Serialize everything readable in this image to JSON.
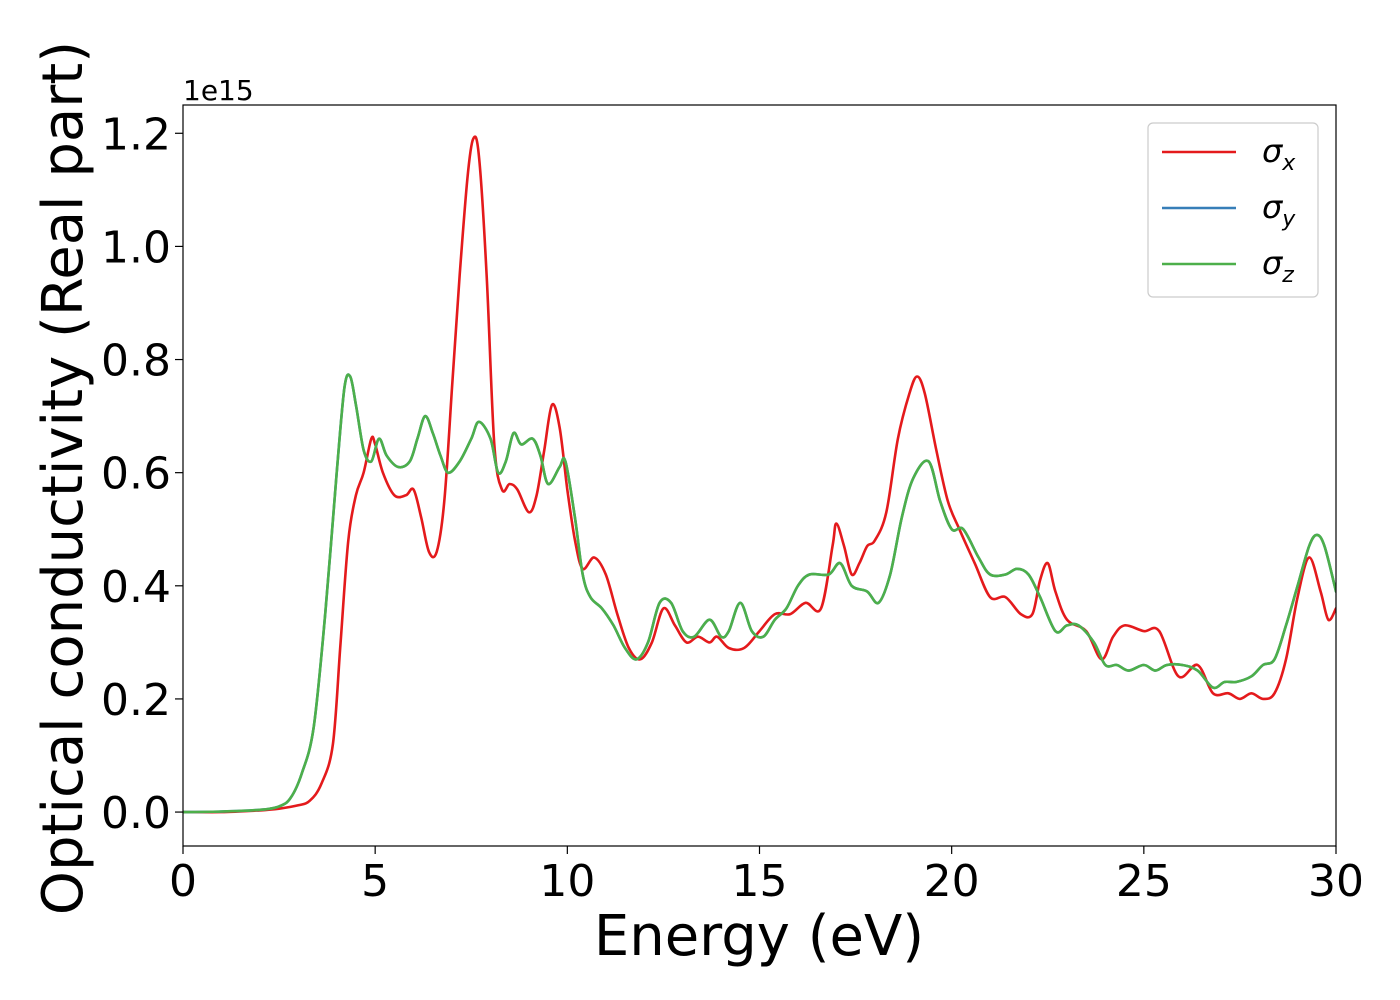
{
  "chart_data": {
    "type": "line",
    "xlabel": "Energy (eV)",
    "ylabel": "Optical conductivity (Real part)",
    "y_offset_text": "1e15",
    "xlim": [
      0,
      30
    ],
    "ylim": [
      -0.06,
      1.25
    ],
    "x_ticks": [
      0,
      5,
      10,
      15,
      20,
      25,
      30
    ],
    "x_tick_labels": [
      "0",
      "5",
      "10",
      "15",
      "20",
      "25",
      "30"
    ],
    "y_ticks": [
      0.0,
      0.2,
      0.4,
      0.6,
      0.8,
      1.0,
      1.2
    ],
    "y_tick_labels": [
      "0.0",
      "0.2",
      "0.4",
      "0.6",
      "0.8",
      "1.0",
      "1.2"
    ],
    "grid": false,
    "legend_position": "top-right",
    "series": [
      {
        "name": "σx",
        "symbol": "σ",
        "subscript": "x",
        "color": "#e41a1c",
        "points": [
          [
            0,
            0.0
          ],
          [
            1,
            0.0
          ],
          [
            2,
            0.003
          ],
          [
            2.5,
            0.006
          ],
          [
            3,
            0.012
          ],
          [
            3.3,
            0.02
          ],
          [
            3.6,
            0.05
          ],
          [
            3.9,
            0.12
          ],
          [
            4.1,
            0.3
          ],
          [
            4.3,
            0.48
          ],
          [
            4.5,
            0.56
          ],
          [
            4.7,
            0.6
          ],
          [
            4.9,
            0.66
          ],
          [
            5.0,
            0.65
          ],
          [
            5.2,
            0.6
          ],
          [
            5.5,
            0.56
          ],
          [
            5.8,
            0.56
          ],
          [
            6.0,
            0.57
          ],
          [
            6.2,
            0.52
          ],
          [
            6.4,
            0.46
          ],
          [
            6.6,
            0.46
          ],
          [
            6.8,
            0.55
          ],
          [
            7.0,
            0.75
          ],
          [
            7.2,
            0.95
          ],
          [
            7.4,
            1.12
          ],
          [
            7.55,
            1.19
          ],
          [
            7.7,
            1.16
          ],
          [
            7.9,
            0.95
          ],
          [
            8.1,
            0.65
          ],
          [
            8.3,
            0.57
          ],
          [
            8.5,
            0.58
          ],
          [
            8.7,
            0.57
          ],
          [
            9.0,
            0.53
          ],
          [
            9.2,
            0.56
          ],
          [
            9.4,
            0.64
          ],
          [
            9.6,
            0.72
          ],
          [
            9.8,
            0.68
          ],
          [
            10.0,
            0.57
          ],
          [
            10.2,
            0.48
          ],
          [
            10.4,
            0.43
          ],
          [
            10.7,
            0.45
          ],
          [
            11.0,
            0.42
          ],
          [
            11.3,
            0.35
          ],
          [
            11.6,
            0.29
          ],
          [
            11.9,
            0.27
          ],
          [
            12.2,
            0.3
          ],
          [
            12.5,
            0.36
          ],
          [
            12.8,
            0.33
          ],
          [
            13.1,
            0.3
          ],
          [
            13.4,
            0.31
          ],
          [
            13.7,
            0.3
          ],
          [
            13.9,
            0.31
          ],
          [
            14.2,
            0.29
          ],
          [
            14.6,
            0.29
          ],
          [
            15.0,
            0.32
          ],
          [
            15.4,
            0.35
          ],
          [
            15.8,
            0.35
          ],
          [
            16.2,
            0.37
          ],
          [
            16.6,
            0.36
          ],
          [
            16.9,
            0.47
          ],
          [
            17.0,
            0.51
          ],
          [
            17.2,
            0.47
          ],
          [
            17.4,
            0.42
          ],
          [
            17.6,
            0.44
          ],
          [
            17.8,
            0.47
          ],
          [
            18.0,
            0.48
          ],
          [
            18.3,
            0.53
          ],
          [
            18.6,
            0.66
          ],
          [
            18.9,
            0.74
          ],
          [
            19.1,
            0.77
          ],
          [
            19.3,
            0.74
          ],
          [
            19.6,
            0.64
          ],
          [
            19.9,
            0.55
          ],
          [
            20.2,
            0.5
          ],
          [
            20.6,
            0.44
          ],
          [
            21.0,
            0.38
          ],
          [
            21.4,
            0.38
          ],
          [
            21.8,
            0.35
          ],
          [
            22.1,
            0.35
          ],
          [
            22.3,
            0.41
          ],
          [
            22.5,
            0.44
          ],
          [
            22.7,
            0.39
          ],
          [
            23.0,
            0.34
          ],
          [
            23.5,
            0.32
          ],
          [
            23.9,
            0.27
          ],
          [
            24.2,
            0.31
          ],
          [
            24.5,
            0.33
          ],
          [
            25.0,
            0.32
          ],
          [
            25.4,
            0.32
          ],
          [
            25.9,
            0.24
          ],
          [
            26.4,
            0.26
          ],
          [
            26.8,
            0.21
          ],
          [
            27.2,
            0.21
          ],
          [
            27.5,
            0.2
          ],
          [
            27.8,
            0.21
          ],
          [
            28.1,
            0.2
          ],
          [
            28.4,
            0.21
          ],
          [
            28.7,
            0.27
          ],
          [
            29.0,
            0.38
          ],
          [
            29.3,
            0.45
          ],
          [
            29.6,
            0.39
          ],
          [
            29.8,
            0.34
          ],
          [
            30.0,
            0.36
          ]
        ]
      },
      {
        "name": "σy",
        "symbol": "σ",
        "subscript": "y",
        "color": "#377eb8",
        "points": [
          [
            0,
            0.0
          ],
          [
            1,
            0.001
          ],
          [
            2,
            0.004
          ],
          [
            2.5,
            0.01
          ],
          [
            2.8,
            0.025
          ],
          [
            3.1,
            0.07
          ],
          [
            3.4,
            0.15
          ],
          [
            3.7,
            0.35
          ],
          [
            4.0,
            0.6
          ],
          [
            4.2,
            0.75
          ],
          [
            4.35,
            0.77
          ],
          [
            4.5,
            0.72
          ],
          [
            4.7,
            0.64
          ],
          [
            4.9,
            0.62
          ],
          [
            5.1,
            0.66
          ],
          [
            5.3,
            0.63
          ],
          [
            5.6,
            0.61
          ],
          [
            5.9,
            0.62
          ],
          [
            6.1,
            0.66
          ],
          [
            6.3,
            0.7
          ],
          [
            6.5,
            0.67
          ],
          [
            6.7,
            0.63
          ],
          [
            6.9,
            0.6
          ],
          [
            7.2,
            0.62
          ],
          [
            7.5,
            0.66
          ],
          [
            7.7,
            0.69
          ],
          [
            8.0,
            0.66
          ],
          [
            8.2,
            0.6
          ],
          [
            8.4,
            0.62
          ],
          [
            8.6,
            0.67
          ],
          [
            8.8,
            0.65
          ],
          [
            9.1,
            0.66
          ],
          [
            9.3,
            0.63
          ],
          [
            9.5,
            0.58
          ],
          [
            9.8,
            0.61
          ],
          [
            9.95,
            0.62
          ],
          [
            10.2,
            0.52
          ],
          [
            10.4,
            0.42
          ],
          [
            10.6,
            0.38
          ],
          [
            10.9,
            0.36
          ],
          [
            11.2,
            0.33
          ],
          [
            11.5,
            0.29
          ],
          [
            11.8,
            0.27
          ],
          [
            12.1,
            0.3
          ],
          [
            12.4,
            0.37
          ],
          [
            12.7,
            0.37
          ],
          [
            13.0,
            0.32
          ],
          [
            13.3,
            0.31
          ],
          [
            13.7,
            0.34
          ],
          [
            14.0,
            0.31
          ],
          [
            14.2,
            0.32
          ],
          [
            14.5,
            0.37
          ],
          [
            14.8,
            0.32
          ],
          [
            15.1,
            0.31
          ],
          [
            15.4,
            0.34
          ],
          [
            15.7,
            0.36
          ],
          [
            16.0,
            0.4
          ],
          [
            16.3,
            0.42
          ],
          [
            16.8,
            0.42
          ],
          [
            17.1,
            0.44
          ],
          [
            17.4,
            0.4
          ],
          [
            17.8,
            0.39
          ],
          [
            18.1,
            0.37
          ],
          [
            18.4,
            0.42
          ],
          [
            18.7,
            0.52
          ],
          [
            19.0,
            0.59
          ],
          [
            19.4,
            0.62
          ],
          [
            19.7,
            0.55
          ],
          [
            20.0,
            0.5
          ],
          [
            20.3,
            0.5
          ],
          [
            20.7,
            0.45
          ],
          [
            21.0,
            0.42
          ],
          [
            21.4,
            0.42
          ],
          [
            21.7,
            0.43
          ],
          [
            22.0,
            0.42
          ],
          [
            22.3,
            0.38
          ],
          [
            22.7,
            0.32
          ],
          [
            23.0,
            0.33
          ],
          [
            23.3,
            0.33
          ],
          [
            23.7,
            0.3
          ],
          [
            24.0,
            0.26
          ],
          [
            24.3,
            0.26
          ],
          [
            24.6,
            0.25
          ],
          [
            25.0,
            0.26
          ],
          [
            25.3,
            0.25
          ],
          [
            25.6,
            0.26
          ],
          [
            26.0,
            0.26
          ],
          [
            26.4,
            0.25
          ],
          [
            26.8,
            0.22
          ],
          [
            27.1,
            0.23
          ],
          [
            27.4,
            0.23
          ],
          [
            27.8,
            0.24
          ],
          [
            28.1,
            0.26
          ],
          [
            28.4,
            0.27
          ],
          [
            28.7,
            0.33
          ],
          [
            29.0,
            0.4
          ],
          [
            29.3,
            0.47
          ],
          [
            29.5,
            0.49
          ],
          [
            29.7,
            0.47
          ],
          [
            30.0,
            0.39
          ]
        ]
      },
      {
        "name": "σz",
        "symbol": "σ",
        "subscript": "z",
        "color": "#4daf4a",
        "points": [
          [
            0,
            0.0
          ],
          [
            1,
            0.001
          ],
          [
            2,
            0.004
          ],
          [
            2.5,
            0.01
          ],
          [
            2.8,
            0.025
          ],
          [
            3.1,
            0.07
          ],
          [
            3.4,
            0.15
          ],
          [
            3.7,
            0.35
          ],
          [
            4.0,
            0.6
          ],
          [
            4.2,
            0.75
          ],
          [
            4.35,
            0.77
          ],
          [
            4.5,
            0.72
          ],
          [
            4.7,
            0.64
          ],
          [
            4.9,
            0.62
          ],
          [
            5.1,
            0.66
          ],
          [
            5.3,
            0.63
          ],
          [
            5.6,
            0.61
          ],
          [
            5.9,
            0.62
          ],
          [
            6.1,
            0.66
          ],
          [
            6.3,
            0.7
          ],
          [
            6.5,
            0.67
          ],
          [
            6.7,
            0.63
          ],
          [
            6.9,
            0.6
          ],
          [
            7.2,
            0.62
          ],
          [
            7.5,
            0.66
          ],
          [
            7.7,
            0.69
          ],
          [
            8.0,
            0.66
          ],
          [
            8.2,
            0.6
          ],
          [
            8.4,
            0.62
          ],
          [
            8.6,
            0.67
          ],
          [
            8.8,
            0.65
          ],
          [
            9.1,
            0.66
          ],
          [
            9.3,
            0.63
          ],
          [
            9.5,
            0.58
          ],
          [
            9.8,
            0.61
          ],
          [
            9.95,
            0.62
          ],
          [
            10.2,
            0.52
          ],
          [
            10.4,
            0.42
          ],
          [
            10.6,
            0.38
          ],
          [
            10.9,
            0.36
          ],
          [
            11.2,
            0.33
          ],
          [
            11.5,
            0.29
          ],
          [
            11.8,
            0.27
          ],
          [
            12.1,
            0.3
          ],
          [
            12.4,
            0.37
          ],
          [
            12.7,
            0.37
          ],
          [
            13.0,
            0.32
          ],
          [
            13.3,
            0.31
          ],
          [
            13.7,
            0.34
          ],
          [
            14.0,
            0.31
          ],
          [
            14.2,
            0.32
          ],
          [
            14.5,
            0.37
          ],
          [
            14.8,
            0.32
          ],
          [
            15.1,
            0.31
          ],
          [
            15.4,
            0.34
          ],
          [
            15.7,
            0.36
          ],
          [
            16.0,
            0.4
          ],
          [
            16.3,
            0.42
          ],
          [
            16.8,
            0.42
          ],
          [
            17.1,
            0.44
          ],
          [
            17.4,
            0.4
          ],
          [
            17.8,
            0.39
          ],
          [
            18.1,
            0.37
          ],
          [
            18.4,
            0.42
          ],
          [
            18.7,
            0.52
          ],
          [
            19.0,
            0.59
          ],
          [
            19.4,
            0.62
          ],
          [
            19.7,
            0.55
          ],
          [
            20.0,
            0.5
          ],
          [
            20.3,
            0.5
          ],
          [
            20.7,
            0.45
          ],
          [
            21.0,
            0.42
          ],
          [
            21.4,
            0.42
          ],
          [
            21.7,
            0.43
          ],
          [
            22.0,
            0.42
          ],
          [
            22.3,
            0.38
          ],
          [
            22.7,
            0.32
          ],
          [
            23.0,
            0.33
          ],
          [
            23.3,
            0.33
          ],
          [
            23.7,
            0.3
          ],
          [
            24.0,
            0.26
          ],
          [
            24.3,
            0.26
          ],
          [
            24.6,
            0.25
          ],
          [
            25.0,
            0.26
          ],
          [
            25.3,
            0.25
          ],
          [
            25.6,
            0.26
          ],
          [
            26.0,
            0.26
          ],
          [
            26.4,
            0.25
          ],
          [
            26.8,
            0.22
          ],
          [
            27.1,
            0.23
          ],
          [
            27.4,
            0.23
          ],
          [
            27.8,
            0.24
          ],
          [
            28.1,
            0.26
          ],
          [
            28.4,
            0.27
          ],
          [
            28.7,
            0.33
          ],
          [
            29.0,
            0.4
          ],
          [
            29.3,
            0.47
          ],
          [
            29.5,
            0.49
          ],
          [
            29.7,
            0.47
          ],
          [
            30.0,
            0.39
          ]
        ]
      }
    ]
  }
}
